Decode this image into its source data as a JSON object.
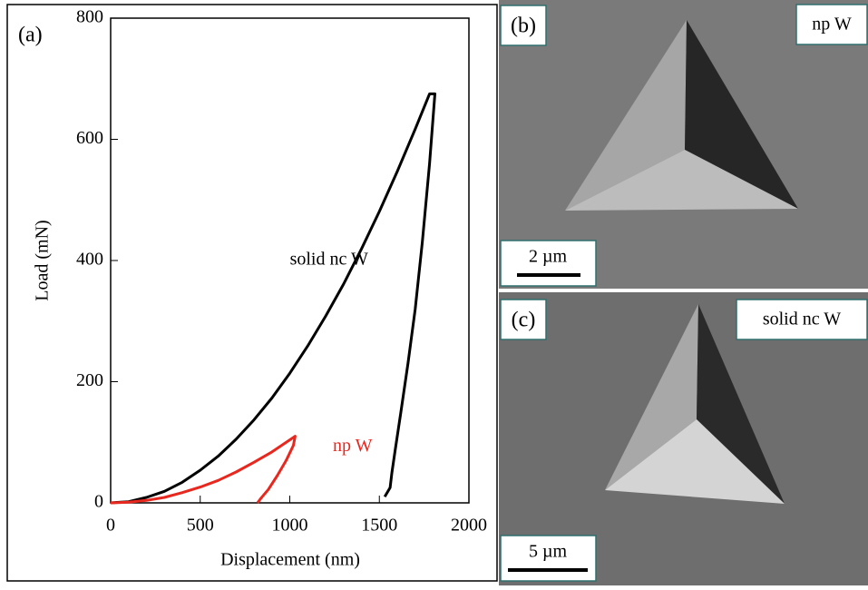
{
  "chart_data": {
    "type": "line",
    "panel_label": "(a)",
    "x_label": "Displacement (nm)",
    "y_label": "Load (mN)",
    "xlim": [
      0,
      2000
    ],
    "xticks": [
      0,
      500,
      1000,
      1500,
      2000
    ],
    "ylim": [
      0,
      800
    ],
    "yticks": [
      0,
      200,
      400,
      600,
      800
    ],
    "series": [
      {
        "name": "solid nc W",
        "color": "#000000",
        "x": [
          0,
          100,
          200,
          300,
          400,
          500,
          600,
          700,
          800,
          900,
          1000,
          1100,
          1200,
          1300,
          1400,
          1500,
          1600,
          1700,
          1780,
          1810,
          1780,
          1740,
          1700,
          1660,
          1620,
          1590,
          1570,
          1560,
          1530
        ],
        "values": [
          0,
          2,
          9,
          19,
          34,
          54,
          77,
          105,
          137,
          173,
          214,
          259,
          308,
          361,
          419,
          481,
          547,
          617,
          675,
          675,
          560,
          430,
          320,
          230,
          150,
          90,
          50,
          25,
          10
        ]
      },
      {
        "name": "np W",
        "color": "#e8281e",
        "x": [
          0,
          100,
          200,
          300,
          400,
          500,
          600,
          700,
          800,
          900,
          1000,
          1030,
          1020,
          980,
          930,
          880,
          840,
          820
        ],
        "values": [
          0,
          1,
          4,
          9,
          17,
          26,
          37,
          51,
          67,
          84,
          104,
          110,
          95,
          70,
          45,
          22,
          8,
          0
        ]
      }
    ]
  },
  "images": [
    {
      "label": "(b)",
      "caption": "np W",
      "scale_bar": "2 µm"
    },
    {
      "label": "(c)",
      "caption": "solid nc W",
      "scale_bar": "5 µm"
    }
  ]
}
